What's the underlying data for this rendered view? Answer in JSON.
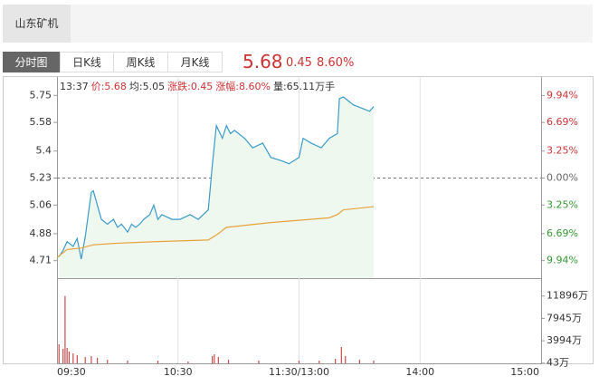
{
  "header": {
    "stock_tab": "山东矿机",
    "tabs": [
      "分时图",
      "日K线",
      "周K线",
      "月K线"
    ],
    "price": "5.68",
    "change": "0.45",
    "change_pct": "8.60%"
  },
  "info": [
    "13:37",
    "价:5.68",
    "均:5.05",
    "涨跌:0.45",
    "涨幅:8.60%",
    "量:65.11万手"
  ],
  "chart_data": [
    {
      "type": "line",
      "xlim": [
        0,
        240
      ],
      "xticks": [
        {
          "value": 0,
          "label": "09:30"
        },
        {
          "value": 60,
          "label": "10:30"
        },
        {
          "value": 120,
          "label": "11:30/13:00"
        },
        {
          "value": 180,
          "label": "14:00"
        },
        {
          "value": 240,
          "label": "15:00"
        }
      ],
      "ylim": [
        4.6,
        5.86
      ],
      "yticks": [
        5.75,
        5.58,
        5.4,
        5.23,
        5.06,
        4.88,
        4.71
      ],
      "y2lim": [
        -12.05,
        12.05
      ],
      "y2ticks": [
        {
          "value": 9.94,
          "label": "9.94%"
        },
        {
          "value": 6.69,
          "label": "6.69%"
        },
        {
          "value": 3.25,
          "label": "3.25%"
        },
        {
          "value": 0,
          "label": "0.00%"
        },
        {
          "value": -3.25,
          "label": "3.25%"
        },
        {
          "value": -6.69,
          "label": "6.69%"
        },
        {
          "value": -9.94,
          "label": "9.94%"
        }
      ],
      "series": [
        {
          "color": "#3a9bc9",
          "fill": "#eef8ef",
          "x": [
            1,
            3,
            5,
            8,
            10,
            12,
            14,
            17,
            18,
            20,
            22,
            25,
            28,
            30,
            32,
            35,
            37,
            39,
            41,
            43,
            46,
            48,
            50,
            52,
            57,
            61,
            66,
            70,
            75,
            77,
            79,
            82,
            84,
            86,
            88,
            93,
            97,
            102,
            106,
            111,
            115,
            120,
            122,
            126,
            131,
            135,
            139,
            140,
            142,
            147,
            151,
            155,
            157
          ],
          "values": [
            4.735,
            4.775,
            4.83,
            4.8,
            4.85,
            4.72,
            4.86,
            5.14,
            5.15,
            5.06,
            4.97,
            4.94,
            4.97,
            4.92,
            4.94,
            4.89,
            4.94,
            4.92,
            4.94,
            4.97,
            5.0,
            5.06,
            4.97,
            5.0,
            4.97,
            4.97,
            5.0,
            4.97,
            5.03,
            5.31,
            5.56,
            5.48,
            5.56,
            5.51,
            5.53,
            5.48,
            5.42,
            5.45,
            5.36,
            5.34,
            5.32,
            5.36,
            5.48,
            5.45,
            5.42,
            5.48,
            5.51,
            5.73,
            5.74,
            5.69,
            5.67,
            5.65,
            5.68
          ]
        },
        {
          "color": "#e8a23a",
          "x": [
            0,
            5,
            12,
            18,
            30,
            50,
            75,
            80,
            84,
            106,
            135,
            139,
            142,
            157
          ],
          "values": [
            4.73,
            4.78,
            4.79,
            4.81,
            4.82,
            4.83,
            4.84,
            4.88,
            4.92,
            4.95,
            4.98,
            5.0,
            5.03,
            5.05
          ]
        }
      ]
    },
    {
      "type": "bar",
      "color": "#c94a4a",
      "ylim": [
        0,
        15050
      ],
      "yticks": [
        {
          "value": 11896,
          "label": "11896万"
        },
        {
          "value": 7945,
          "label": "7945万"
        },
        {
          "value": 3994,
          "label": "3994万"
        },
        {
          "value": 43,
          "label": "43万"
        }
      ],
      "x": [
        1,
        3,
        4,
        5,
        6,
        8,
        10,
        14,
        17,
        20,
        25,
        35,
        50,
        65,
        77,
        78,
        80,
        85,
        100,
        120,
        130,
        138,
        141,
        143,
        150,
        157
      ],
      "values": [
        3360,
        2560,
        11896,
        2720,
        2080,
        1760,
        1440,
        1120,
        1280,
        960,
        640,
        480,
        480,
        320,
        1280,
        1600,
        1120,
        640,
        480,
        480,
        480,
        800,
        2880,
        1280,
        640,
        480
      ]
    }
  ]
}
